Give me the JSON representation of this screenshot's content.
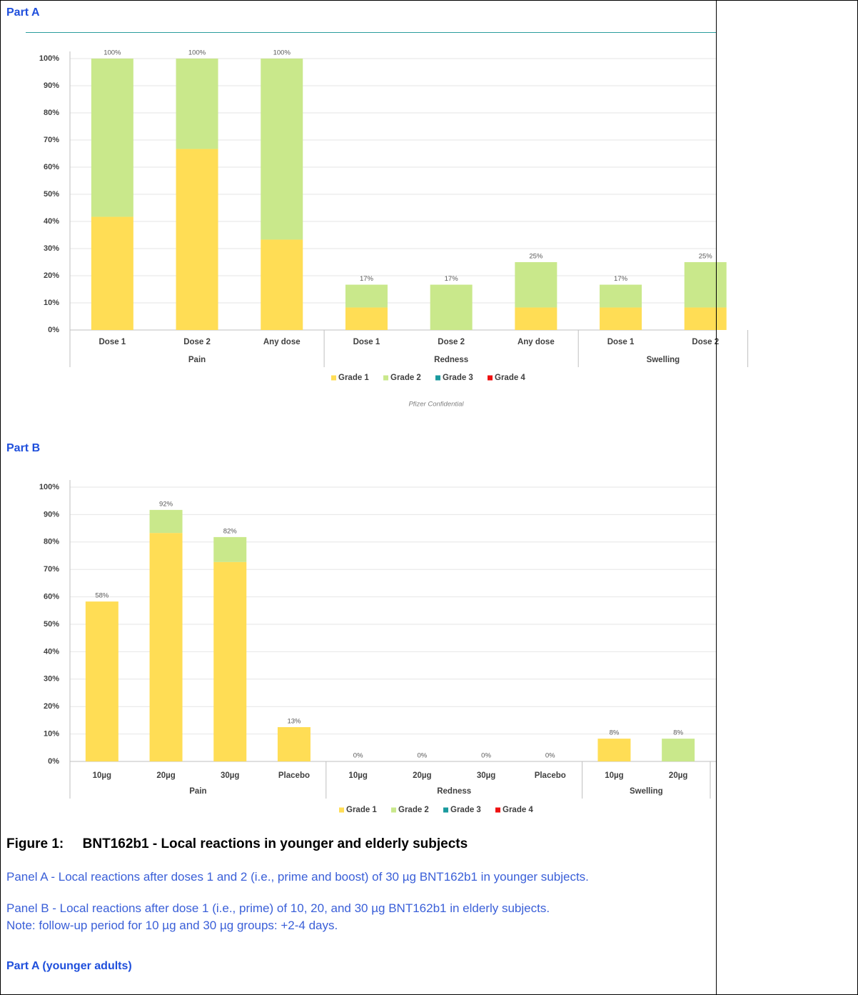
{
  "sections": {
    "part_a": "Part A",
    "part_b": "Part B"
  },
  "chart_data": [
    {
      "type": "stacked_bar",
      "groups": [
        {
          "name": "Pain",
          "categories": [
            "Dose 1",
            "Dose 2",
            "Any dose"
          ]
        },
        {
          "name": "Redness",
          "categories": [
            "Dose 1",
            "Dose 2",
            "Any dose"
          ]
        },
        {
          "name": "Swelling",
          "categories": [
            "Dose 1",
            "Dose 2"
          ]
        }
      ],
      "series": [
        {
          "name": "Grade 1",
          "color": "#ffdd55",
          "values": [
            41.7,
            66.7,
            33.3,
            8.3,
            0,
            8.3,
            8.3,
            8.3
          ]
        },
        {
          "name": "Grade 2",
          "color": "#c9e88b",
          "values": [
            58.3,
            33.3,
            66.7,
            8.4,
            16.7,
            16.7,
            8.4,
            16.7
          ]
        },
        {
          "name": "Grade 3",
          "color": "#1a9a9e",
          "values": [
            0,
            0,
            0,
            0,
            0,
            0,
            0,
            0
          ]
        },
        {
          "name": "Grade 4",
          "color": "#ee1111",
          "values": [
            0,
            0,
            0,
            0,
            0,
            0,
            0,
            0
          ]
        }
      ],
      "total_labels": [
        "100%",
        "100%",
        "100%",
        "17%",
        "17%",
        "25%",
        "17%",
        "25%"
      ],
      "ylim": [
        0,
        100
      ],
      "yticks": [
        {
          "value": 0,
          "label": "0%"
        },
        {
          "value": 10,
          "label": "10%"
        },
        {
          "value": 20,
          "label": "20%"
        },
        {
          "value": 30,
          "label": "30%"
        },
        {
          "value": 40,
          "label": "40%"
        },
        {
          "value": 50,
          "label": "50%"
        },
        {
          "value": 60,
          "label": "60%"
        },
        {
          "value": 70,
          "label": "70%"
        },
        {
          "value": 80,
          "label": "80%"
        },
        {
          "value": 90,
          "label": "90%"
        },
        {
          "value": 100,
          "label": "100%"
        }
      ],
      "grid": true,
      "legend": "bottom",
      "note": "Pfizer Confidential"
    },
    {
      "type": "stacked_bar",
      "groups": [
        {
          "name": "Pain",
          "categories": [
            "10µg",
            "20µg",
            "30µg",
            "Placebo"
          ]
        },
        {
          "name": "Redness",
          "categories": [
            "10µg",
            "20µg",
            "30µg",
            "Placebo"
          ]
        },
        {
          "name": "Swelling",
          "categories": [
            "10µg",
            "20µg"
          ]
        }
      ],
      "series": [
        {
          "name": "Grade 1",
          "color": "#ffdd55",
          "values": [
            58.3,
            83.3,
            72.7,
            12.5,
            0,
            0,
            0,
            0,
            8.3,
            0
          ]
        },
        {
          "name": "Grade 2",
          "color": "#c9e88b",
          "values": [
            0,
            8.4,
            9.1,
            0,
            0,
            0,
            0,
            0,
            0,
            8.3
          ]
        },
        {
          "name": "Grade 3",
          "color": "#1a9a9e",
          "values": [
            0,
            0,
            0,
            0,
            0,
            0,
            0,
            0,
            0,
            0
          ]
        },
        {
          "name": "Grade 4",
          "color": "#ee1111",
          "values": [
            0,
            0,
            0,
            0,
            0,
            0,
            0,
            0,
            0,
            0
          ]
        }
      ],
      "total_labels": [
        "58%",
        "92%",
        "82%",
        "13%",
        "0%",
        "0%",
        "0%",
        "0%",
        "8%",
        "8%"
      ],
      "ylim": [
        0,
        100
      ],
      "yticks": [
        {
          "value": 0,
          "label": "0%"
        },
        {
          "value": 10,
          "label": "10%"
        },
        {
          "value": 20,
          "label": "20%"
        },
        {
          "value": 30,
          "label": "30%"
        },
        {
          "value": 40,
          "label": "40%"
        },
        {
          "value": 50,
          "label": "50%"
        },
        {
          "value": 60,
          "label": "60%"
        },
        {
          "value": 70,
          "label": "70%"
        },
        {
          "value": 80,
          "label": "80%"
        },
        {
          "value": 90,
          "label": "90%"
        },
        {
          "value": 100,
          "label": "100%"
        }
      ],
      "grid": true,
      "legend": "bottom"
    }
  ],
  "figure": {
    "label": "Figure 1:",
    "title": "BNT162b1 - Local reactions in younger and elderly subjects",
    "paragraphs": [
      "Panel A - Local reactions after doses 1 and 2 (i.e., prime and boost) of 30 µg BNT162b1 in younger subjects.",
      "Panel B - Local reactions after dose 1 (i.e., prime) of 10, 20, and 30 µg BNT162b1 in elderly subjects.",
      "Note: follow-up period for 10 µg and 30 µg groups: +2-4 days."
    ]
  },
  "next_heading": "Part A (younger adults)"
}
